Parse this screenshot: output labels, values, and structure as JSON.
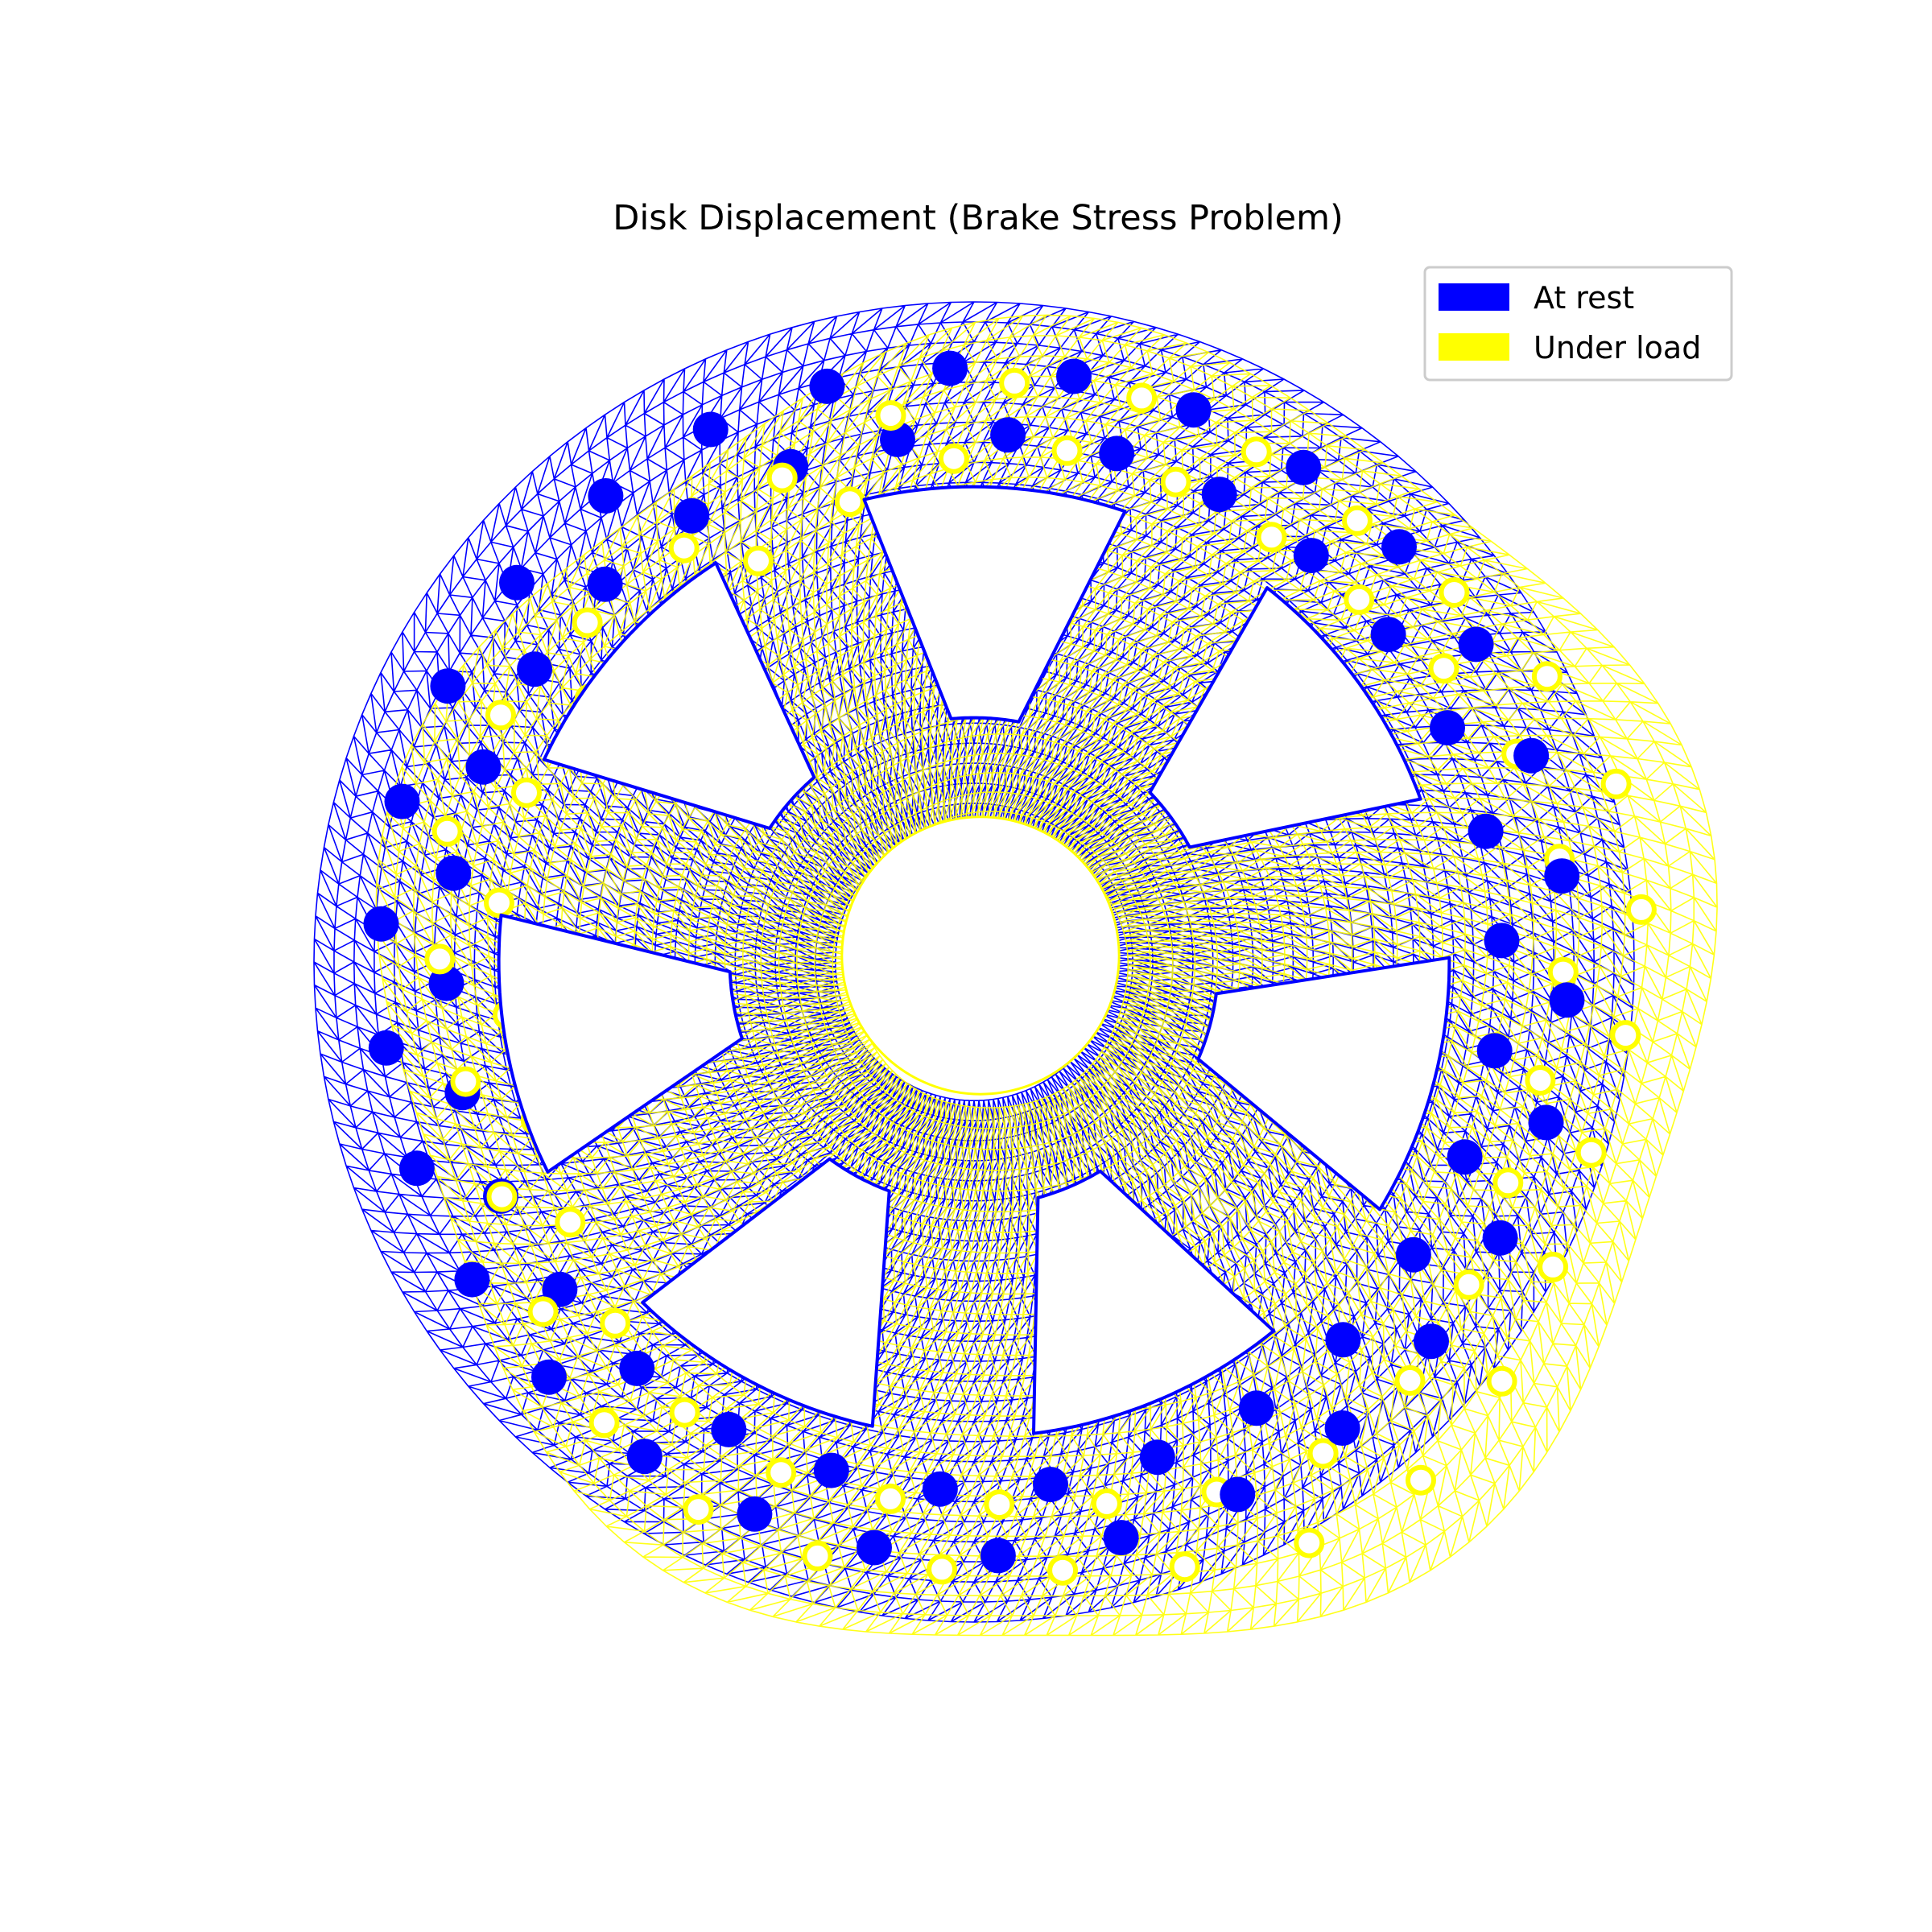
{
  "chart_data": {
    "type": "mesh",
    "title": "Disk Displacement (Brake Stress Problem)",
    "xlabel": "",
    "ylabel": "",
    "axes_visible": false,
    "grid": false,
    "legend_position": "top-right",
    "series": [
      {
        "name": "At rest",
        "color": "#0000ff"
      },
      {
        "name": "Under load",
        "color": "#ffff00"
      }
    ],
    "geometry": {
      "outer_radius": 1.0,
      "hub_radius": 0.21,
      "spoke_count": 7,
      "cutout_inner_radius": 0.37,
      "cutout_outer_radius": 0.72,
      "drill_hole_radii": [
        0.8,
        0.9
      ],
      "drill_hole_count_per_row": 30,
      "mesh_rings": 26,
      "mesh_points_per_ring": 180
    },
    "displacement": {
      "direction": "right-down",
      "dx": 0.11,
      "dy": -0.06,
      "wave_amplitude": 0.04,
      "wave_lobes": 5
    }
  }
}
